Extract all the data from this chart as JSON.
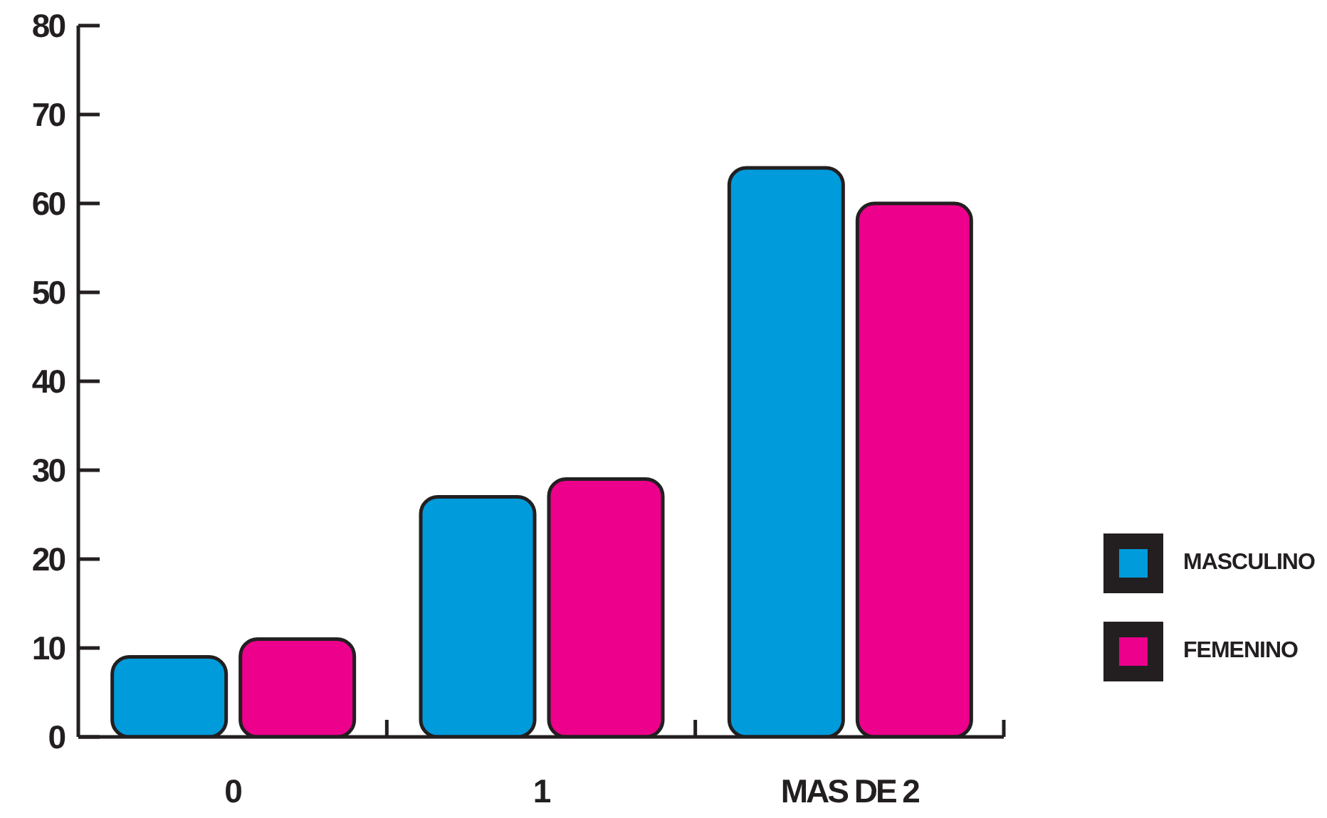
{
  "chart_data": {
    "type": "bar",
    "categories": [
      "0",
      "1",
      "MAS DE 2"
    ],
    "series": [
      {
        "name": "MASCULINO",
        "color": "#009bdb",
        "values": [
          9,
          27,
          64
        ]
      },
      {
        "name": "FEMENINO",
        "color": "#ec008c",
        "values": [
          11,
          29,
          60
        ]
      }
    ],
    "ylim": [
      0,
      80
    ],
    "yticks": [
      0,
      10,
      20,
      30,
      40,
      50,
      60,
      70,
      80
    ],
    "legend": "right"
  }
}
